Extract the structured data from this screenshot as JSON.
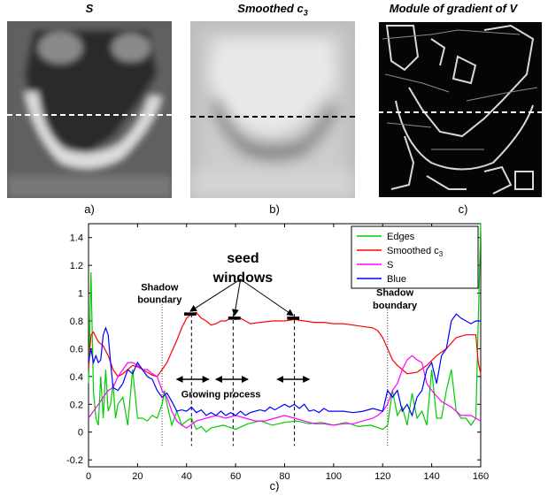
{
  "panels": [
    {
      "title": "S",
      "letter": "a)"
    },
    {
      "title_main": "Smoothed c",
      "title_sub": "3",
      "letter": "b)"
    },
    {
      "title": "Module of gradient of V",
      "letter": "c)"
    }
  ],
  "chart_data": {
    "type": "line",
    "xlabel": "c)",
    "xlim": [
      0,
      160
    ],
    "ylim": [
      -0.25,
      1.5
    ],
    "xticks": [
      0,
      20,
      40,
      60,
      80,
      100,
      120,
      140,
      160
    ],
    "yticks": [
      -0.2,
      0,
      0.2,
      0.4,
      0.6,
      0.8,
      1,
      1.2,
      1.4
    ],
    "legend_position": "top-right",
    "series": [
      {
        "name": "Edges",
        "color": "#00cc00",
        "x": [
          0,
          1,
          2,
          3,
          4,
          5,
          6,
          7,
          8,
          9,
          10,
          11,
          12,
          14,
          16,
          18,
          20,
          22,
          24,
          26,
          28,
          30,
          31,
          32,
          34,
          36,
          38,
          40,
          42,
          44,
          46,
          48,
          50,
          55,
          60,
          65,
          70,
          75,
          80,
          85,
          90,
          95,
          100,
          105,
          110,
          115,
          120,
          122,
          124,
          126,
          128,
          130,
          132,
          134,
          136,
          138,
          140,
          142,
          144,
          146,
          148,
          150,
          152,
          154,
          156,
          158,
          160
        ],
        "y": [
          0.35,
          1.15,
          0.3,
          0.1,
          0.05,
          0.4,
          0.1,
          0.45,
          0.15,
          0.2,
          0.35,
          0.1,
          0.2,
          0.25,
          0.05,
          0.45,
          0.1,
          0.1,
          0.08,
          0.12,
          0.1,
          0.2,
          0.3,
          0.2,
          0.05,
          0.15,
          0.05,
          0.08,
          0.1,
          0.02,
          0.04,
          0.0,
          0.03,
          0.05,
          0.02,
          0.06,
          0.08,
          0.05,
          0.07,
          0.08,
          0.06,
          0.07,
          0.05,
          0.07,
          0.04,
          0.05,
          0.02,
          0.05,
          0.3,
          0.12,
          0.18,
          0.05,
          0.28,
          0.1,
          0.15,
          0.05,
          0.45,
          0.1,
          0.1,
          0.3,
          0.45,
          0.15,
          0.1,
          0.1,
          0.05,
          0.1,
          1.5
        ]
      },
      {
        "name": "Smoothed c3",
        "color": "#ff0000",
        "x": [
          0,
          1,
          2,
          4,
          6,
          8,
          10,
          12,
          14,
          16,
          18,
          20,
          22,
          24,
          26,
          28,
          30,
          32,
          34,
          36,
          38,
          40,
          42,
          44,
          46,
          48,
          50,
          52,
          54,
          56,
          58,
          60,
          62,
          64,
          66,
          70,
          75,
          80,
          84,
          88,
          92,
          96,
          100,
          104,
          108,
          112,
          116,
          118,
          120,
          122,
          124,
          126,
          128,
          130,
          134,
          138,
          142,
          146,
          150,
          154,
          158,
          159,
          160
        ],
        "y": [
          0.45,
          0.7,
          0.72,
          0.65,
          0.62,
          0.55,
          0.45,
          0.4,
          0.42,
          0.45,
          0.48,
          0.47,
          0.45,
          0.43,
          0.41,
          0.4,
          0.45,
          0.5,
          0.58,
          0.66,
          0.75,
          0.82,
          0.85,
          0.86,
          0.82,
          0.8,
          0.77,
          0.78,
          0.8,
          0.8,
          0.82,
          0.81,
          0.82,
          0.8,
          0.78,
          0.79,
          0.8,
          0.8,
          0.81,
          0.8,
          0.79,
          0.79,
          0.78,
          0.78,
          0.77,
          0.76,
          0.75,
          0.73,
          0.68,
          0.6,
          0.52,
          0.48,
          0.45,
          0.42,
          0.43,
          0.48,
          0.55,
          0.6,
          0.68,
          0.7,
          0.7,
          0.5,
          0.42
        ]
      },
      {
        "name": "S",
        "color": "#ff00ff",
        "x": [
          0,
          2,
          4,
          6,
          8,
          10,
          12,
          14,
          16,
          18,
          20,
          22,
          24,
          26,
          28,
          30,
          32,
          34,
          36,
          38,
          40,
          44,
          48,
          52,
          56,
          60,
          64,
          68,
          72,
          76,
          80,
          84,
          88,
          92,
          96,
          100,
          104,
          108,
          112,
          116,
          118,
          120,
          122,
          124,
          126,
          128,
          130,
          132,
          134,
          136,
          138,
          140,
          144,
          148,
          152,
          156,
          160
        ],
        "y": [
          0.1,
          0.15,
          0.2,
          0.25,
          0.3,
          0.32,
          0.4,
          0.45,
          0.5,
          0.5,
          0.48,
          0.45,
          0.45,
          0.42,
          0.4,
          0.3,
          0.25,
          0.15,
          0.08,
          0.05,
          0.03,
          0.08,
          0.1,
          0.12,
          0.1,
          0.12,
          0.1,
          0.08,
          0.08,
          0.1,
          0.12,
          0.1,
          0.08,
          0.06,
          0.06,
          0.05,
          0.06,
          0.06,
          0.08,
          0.1,
          0.12,
          0.15,
          0.2,
          0.3,
          0.35,
          0.45,
          0.52,
          0.55,
          0.52,
          0.5,
          0.35,
          0.3,
          0.22,
          0.18,
          0.12,
          0.12,
          0.08
        ]
      },
      {
        "name": "Blue",
        "color": "#0000ff",
        "x": [
          0,
          1,
          2,
          3,
          4,
          5,
          6,
          7,
          8,
          9,
          10,
          12,
          14,
          16,
          18,
          20,
          22,
          24,
          26,
          28,
          30,
          32,
          34,
          36,
          38,
          40,
          42,
          44,
          46,
          48,
          50,
          52,
          54,
          56,
          58,
          60,
          62,
          64,
          66,
          68,
          70,
          72,
          74,
          76,
          78,
          80,
          82,
          84,
          86,
          88,
          90,
          92,
          94,
          96,
          98,
          100,
          104,
          108,
          112,
          116,
          120,
          122,
          124,
          126,
          128,
          130,
          132,
          134,
          136,
          138,
          140,
          142,
          144,
          146,
          148,
          150,
          152,
          154,
          156,
          158,
          160
        ],
        "y": [
          0.5,
          0.6,
          0.5,
          0.55,
          0.5,
          0.52,
          0.7,
          0.75,
          0.7,
          0.5,
          0.32,
          0.3,
          0.35,
          0.45,
          0.42,
          0.5,
          0.45,
          0.4,
          0.38,
          0.3,
          0.25,
          0.28,
          0.22,
          0.15,
          0.16,
          0.15,
          0.18,
          0.14,
          0.16,
          0.12,
          0.14,
          0.12,
          0.15,
          0.12,
          0.14,
          0.12,
          0.15,
          0.12,
          0.14,
          0.15,
          0.16,
          0.15,
          0.18,
          0.16,
          0.18,
          0.2,
          0.18,
          0.2,
          0.17,
          0.2,
          0.15,
          0.16,
          0.14,
          0.17,
          0.15,
          0.15,
          0.15,
          0.14,
          0.15,
          0.17,
          0.15,
          0.3,
          0.25,
          0.3,
          0.15,
          0.2,
          0.12,
          0.25,
          0.3,
          0.45,
          0.5,
          0.35,
          0.55,
          0.6,
          0.8,
          0.85,
          0.82,
          0.8,
          0.78,
          0.8,
          0.8
        ]
      }
    ],
    "annotations": [
      {
        "text": "seed",
        "kind": "bold-large"
      },
      {
        "text": "windows",
        "kind": "bold-large"
      },
      {
        "text": "Shadow",
        "kind": "bold"
      },
      {
        "text": "boundary",
        "kind": "bold"
      },
      {
        "text": "Shadow",
        "kind": "bold"
      },
      {
        "text": "boundary",
        "kind": "bold"
      },
      {
        "text": "Growing process",
        "kind": "bold"
      }
    ],
    "shadow_boundaries_x": [
      30,
      122
    ],
    "seed_windows": [
      {
        "x_start": 39,
        "x_end": 44,
        "y": 0.85
      },
      {
        "x_start": 57,
        "x_end": 62,
        "y": 0.82
      },
      {
        "x_start": 81,
        "x_end": 86,
        "y": 0.82
      }
    ],
    "seed_lines_x": [
      42,
      59,
      84
    ],
    "growing_arrows": [
      {
        "x_start": 36,
        "x_end": 49,
        "y": 0.38
      },
      {
        "x_start": 52,
        "x_end": 65,
        "y": 0.38
      },
      {
        "x_start": 77,
        "x_end": 90,
        "y": 0.38
      }
    ]
  }
}
